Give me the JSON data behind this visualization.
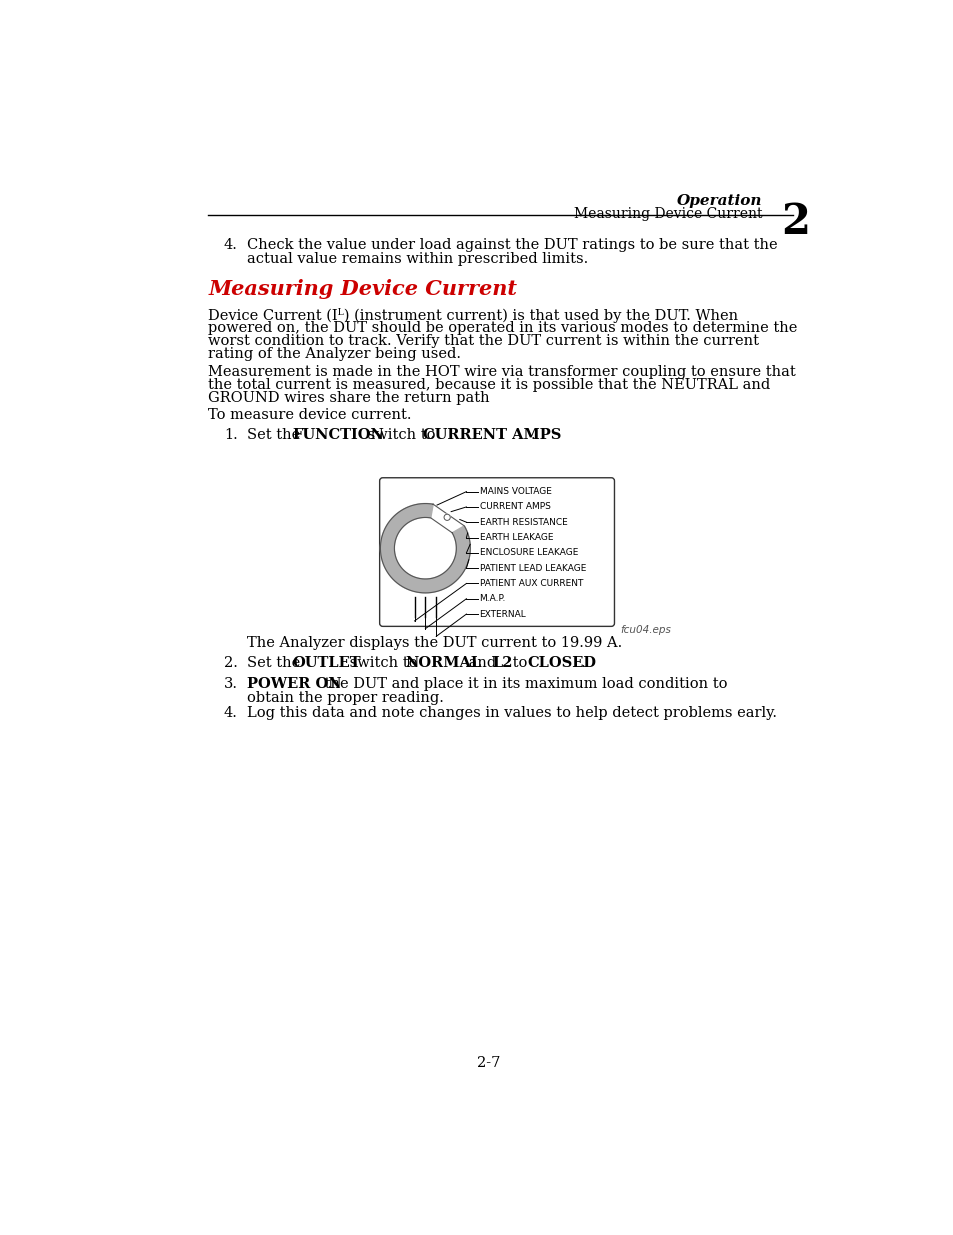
{
  "page_bg": "#ffffff",
  "header_italic": "Operation",
  "header_sub": "Measuring Device Current",
  "header_number": "2",
  "diagram_labels": [
    "MAINS VOLTAGE",
    "CURRENT AMPS",
    "EARTH RESISTANCE",
    "EARTH LEAKAGE",
    "ENCLOSURE LEAKAGE",
    "PATIENT LEAD LEAKAGE",
    "PATIENT AUX CURRENT",
    "M.A.P.",
    "EXTERNAL"
  ],
  "diagram_caption": "fcu04.eps",
  "page_number": "2-7",
  "text_fontsize": 10.5,
  "small_fontsize": 8.0,
  "label_fontsize": 6.5
}
